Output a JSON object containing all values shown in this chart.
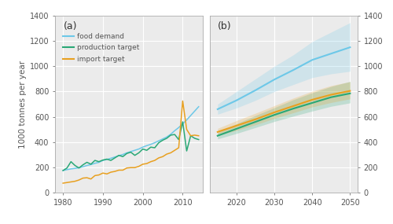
{
  "panel_a_label": "(a)",
  "panel_b_label": "(b)",
  "ylabel": "1000 tonnes per year",
  "legend_labels": [
    "food demand",
    "production target",
    "import target"
  ],
  "colors": {
    "food_demand": "#6DC8E8",
    "production_target": "#2AA876",
    "import_target": "#E8A020"
  },
  "panel_a": {
    "xlim": [
      1978,
      2015
    ],
    "ylim": [
      0,
      1400
    ],
    "xticks": [
      1980,
      1990,
      2000,
      2010
    ],
    "yticks": [
      0,
      200,
      400,
      600,
      800,
      1000,
      1200,
      1400
    ],
    "food_demand_x": [
      1980,
      1981,
      1982,
      1983,
      1984,
      1985,
      1986,
      1987,
      1988,
      1989,
      1990,
      1991,
      1992,
      1993,
      1994,
      1995,
      1996,
      1997,
      1998,
      1999,
      2000,
      2001,
      2002,
      2003,
      2004,
      2005,
      2006,
      2007,
      2008,
      2009,
      2010,
      2011,
      2012,
      2013,
      2014
    ],
    "food_demand_y": [
      175,
      182,
      188,
      192,
      197,
      205,
      215,
      222,
      232,
      240,
      255,
      262,
      272,
      282,
      292,
      302,
      315,
      325,
      335,
      345,
      360,
      372,
      382,
      395,
      410,
      425,
      440,
      462,
      490,
      515,
      545,
      575,
      610,
      645,
      680
    ],
    "production_target_x": [
      1980,
      1981,
      1982,
      1983,
      1984,
      1985,
      1986,
      1987,
      1988,
      1989,
      1990,
      1991,
      1992,
      1993,
      1994,
      1995,
      1996,
      1997,
      1998,
      1999,
      2000,
      2001,
      2002,
      2003,
      2004,
      2005,
      2006,
      2007,
      2008,
      2009,
      2010,
      2011,
      2012,
      2013,
      2014
    ],
    "production_target_y": [
      175,
      195,
      245,
      215,
      195,
      220,
      240,
      225,
      255,
      245,
      258,
      265,
      255,
      275,
      295,
      285,
      310,
      320,
      295,
      315,
      345,
      335,
      360,
      355,
      395,
      415,
      430,
      455,
      460,
      420,
      560,
      330,
      450,
      430,
      420
    ],
    "import_target_x": [
      1980,
      1981,
      1982,
      1983,
      1984,
      1985,
      1986,
      1987,
      1988,
      1989,
      1990,
      1991,
      1992,
      1993,
      1994,
      1995,
      1996,
      1997,
      1998,
      1999,
      2000,
      2001,
      2002,
      2003,
      2004,
      2005,
      2006,
      2007,
      2008,
      2009,
      2010,
      2011,
      2012,
      2013,
      2014
    ],
    "import_target_y": [
      75,
      80,
      85,
      90,
      100,
      115,
      118,
      108,
      135,
      140,
      155,
      148,
      162,
      168,
      178,
      178,
      195,
      198,
      198,
      208,
      225,
      230,
      245,
      255,
      275,
      285,
      305,
      315,
      335,
      355,
      725,
      500,
      450,
      455,
      450
    ]
  },
  "panel_b": {
    "xlim": [
      2013,
      2052
    ],
    "ylim": [
      0,
      1400
    ],
    "xticks": [
      2020,
      2030,
      2040,
      2050
    ],
    "yticks": [
      0,
      200,
      400,
      600,
      800,
      1000,
      1200,
      1400
    ],
    "food_demand_x": [
      2015,
      2020,
      2025,
      2030,
      2035,
      2040,
      2045,
      2050
    ],
    "food_demand_y": [
      660,
      730,
      810,
      895,
      970,
      1050,
      1100,
      1150
    ],
    "food_demand_lower": [
      620,
      670,
      730,
      800,
      855,
      910,
      940,
      960
    ],
    "food_demand_upper": [
      700,
      800,
      900,
      1000,
      1090,
      1195,
      1270,
      1345
    ],
    "production_target_x": [
      2015,
      2020,
      2025,
      2030,
      2035,
      2040,
      2045,
      2050
    ],
    "production_target_y": [
      450,
      505,
      560,
      615,
      665,
      710,
      755,
      785
    ],
    "production_target_lower": [
      425,
      468,
      515,
      563,
      605,
      645,
      683,
      710
    ],
    "production_target_upper": [
      475,
      545,
      610,
      672,
      735,
      790,
      840,
      880
    ],
    "import_target_x": [
      2015,
      2020,
      2025,
      2030,
      2035,
      2040,
      2045,
      2050
    ],
    "import_target_y": [
      480,
      530,
      580,
      635,
      685,
      735,
      775,
      805
    ],
    "import_target_lower": [
      452,
      492,
      537,
      587,
      632,
      678,
      713,
      742
    ],
    "import_target_upper": [
      508,
      570,
      628,
      688,
      748,
      802,
      847,
      878
    ]
  },
  "background_color": "#EBEBEB",
  "grid_color": "#FFFFFF",
  "tick_color": "#555555",
  "spine_color": "#AAAAAA"
}
